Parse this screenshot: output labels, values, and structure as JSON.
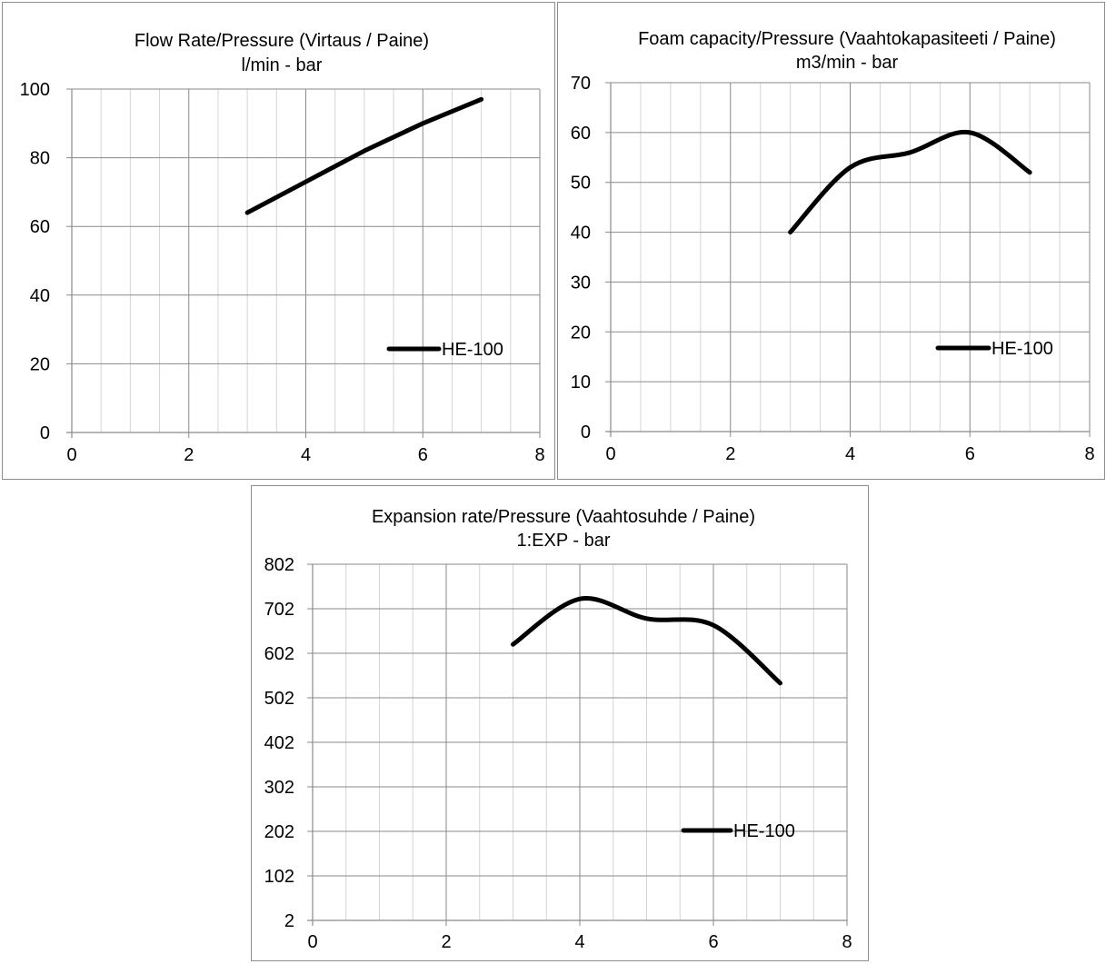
{
  "chart_data": [
    {
      "id": "flow",
      "type": "line",
      "title": "Flow Rate/Pressure (Virtaus / Paine)",
      "subtitle": "l/min - bar",
      "xlim": [
        0,
        8
      ],
      "ylim": [
        0,
        100
      ],
      "x_ticks": [
        0,
        2,
        4,
        6,
        8
      ],
      "y_ticks": [
        0,
        20,
        40,
        60,
        80,
        100
      ],
      "x_minor_step": 0.5,
      "y_minor_step": 20,
      "grid": true,
      "smooth": false,
      "legend": {
        "placement": "bottom-right"
      },
      "series": [
        {
          "name": "HE-100",
          "x": [
            3,
            4,
            5,
            6,
            7
          ],
          "y": [
            64,
            73,
            82,
            90,
            97
          ]
        }
      ]
    },
    {
      "id": "foam",
      "type": "line",
      "title": "Foam capacity/Pressure (Vaahtokapasiteeti / Paine)",
      "subtitle": "m3/min - bar",
      "xlim": [
        0,
        8
      ],
      "ylim": [
        0,
        70
      ],
      "x_ticks": [
        0,
        2,
        4,
        6,
        8
      ],
      "y_ticks": [
        0,
        10,
        20,
        30,
        40,
        50,
        60,
        70
      ],
      "x_minor_step": 0.5,
      "y_minor_step": 10,
      "grid": true,
      "smooth": true,
      "legend": {
        "placement": "bottom-right"
      },
      "series": [
        {
          "name": "HE-100",
          "x": [
            3,
            4,
            5,
            6,
            7
          ],
          "y": [
            40,
            53,
            56,
            60,
            52
          ]
        }
      ]
    },
    {
      "id": "exp",
      "type": "line",
      "title": "Expansion rate/Pressure (Vaahtosuhde / Paine)",
      "subtitle": "1:EXP - bar",
      "xlim": [
        0,
        8
      ],
      "ylim": [
        2,
        802
      ],
      "x_ticks": [
        0,
        2,
        4,
        6,
        8
      ],
      "y_ticks": [
        2,
        102,
        202,
        302,
        402,
        502,
        602,
        702,
        802
      ],
      "x_minor_step": 0.5,
      "y_minor_step": 100,
      "grid": true,
      "smooth": true,
      "legend": {
        "placement": "bottom-right"
      },
      "series": [
        {
          "name": "HE-100",
          "x": [
            3,
            4,
            5,
            6,
            7
          ],
          "y": [
            622,
            724,
            680,
            665,
            535
          ]
        }
      ]
    }
  ]
}
